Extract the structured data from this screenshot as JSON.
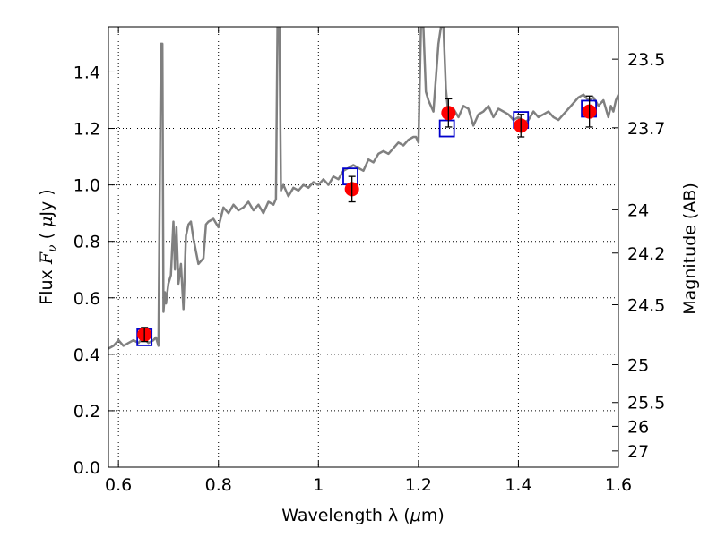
{
  "chart_data": {
    "type": "line",
    "title": "",
    "xlabel_text": "Wavelength  λ (",
    "xlabel_unit_mu": "μ",
    "xlabel_unit_rest": "m)",
    "ylabel_prefix": "Flux  ",
    "ylabel_F": "F",
    "ylabel_nu": "ν",
    "ylabel_open": "  ( ",
    "ylabel_mu": "μ",
    "ylabel_rest": "Jy )",
    "y2label": "Magnitude (AB)",
    "xlim": [
      0.58,
      1.6
    ],
    "ylim": [
      0.0,
      1.56
    ],
    "xticks": [
      0.6,
      0.8,
      1.0,
      1.2,
      1.4,
      1.6
    ],
    "xtick_labels": [
      "0.6",
      "0.8",
      "1",
      "1.2",
      "1.4",
      "1.6"
    ],
    "yticks": [
      0.0,
      0.2,
      0.4,
      0.6,
      0.8,
      1.0,
      1.2,
      1.4
    ],
    "ytick_labels": [
      "0.0",
      "0.2",
      "0.4",
      "0.6",
      "0.8",
      "1.0",
      "1.2",
      "1.4"
    ],
    "y2ticks": [
      {
        "label": "23.5",
        "value": 23.5
      },
      {
        "label": "23.7",
        "value": 23.7
      },
      {
        "label": "24",
        "value": 24.0
      },
      {
        "label": "24.2",
        "value": 24.2
      },
      {
        "label": "24.5",
        "value": 24.5
      },
      {
        "label": "25",
        "value": 25.0
      },
      {
        "label": "25.5",
        "value": 25.5
      },
      {
        "label": "26",
        "value": 26.0
      },
      {
        "label": "27",
        "value": 27.0
      }
    ],
    "grid": true,
    "colors": {
      "model": "#808080",
      "observed": "#ff0000",
      "synthetic": "#0000cc",
      "errorbar": "#000000",
      "grid": "#000000"
    },
    "model_spectrum": {
      "x": [
        0.58,
        0.59,
        0.6,
        0.61,
        0.62,
        0.63,
        0.64,
        0.65,
        0.66,
        0.67,
        0.675,
        0.68,
        0.685,
        0.688,
        0.69,
        0.693,
        0.695,
        0.7,
        0.705,
        0.71,
        0.713,
        0.716,
        0.72,
        0.725,
        0.73,
        0.735,
        0.74,
        0.745,
        0.75,
        0.76,
        0.77,
        0.775,
        0.78,
        0.79,
        0.8,
        0.81,
        0.82,
        0.83,
        0.84,
        0.85,
        0.86,
        0.87,
        0.88,
        0.89,
        0.9,
        0.91,
        0.915,
        0.918,
        0.92,
        0.922,
        0.925,
        0.93,
        0.94,
        0.95,
        0.96,
        0.97,
        0.98,
        0.99,
        1.0,
        1.01,
        1.02,
        1.03,
        1.04,
        1.05,
        1.06,
        1.07,
        1.08,
        1.09,
        1.1,
        1.11,
        1.12,
        1.13,
        1.14,
        1.15,
        1.16,
        1.17,
        1.18,
        1.19,
        1.195,
        1.2,
        1.205,
        1.21,
        1.215,
        1.22,
        1.23,
        1.24,
        1.245,
        1.25,
        1.255,
        1.26,
        1.27,
        1.28,
        1.29,
        1.3,
        1.31,
        1.32,
        1.33,
        1.34,
        1.35,
        1.36,
        1.37,
        1.38,
        1.39,
        1.4,
        1.41,
        1.42,
        1.43,
        1.44,
        1.45,
        1.46,
        1.47,
        1.48,
        1.49,
        1.5,
        1.51,
        1.52,
        1.53,
        1.54,
        1.55,
        1.56,
        1.57,
        1.58,
        1.585,
        1.59,
        1.595,
        1.6
      ],
      "y": [
        0.42,
        0.43,
        0.45,
        0.43,
        0.44,
        0.45,
        0.44,
        0.46,
        0.44,
        0.45,
        0.46,
        0.43,
        1.5,
        1.5,
        0.55,
        0.62,
        0.58,
        0.65,
        0.68,
        0.87,
        0.7,
        0.85,
        0.65,
        0.72,
        0.56,
        0.82,
        0.86,
        0.87,
        0.81,
        0.72,
        0.74,
        0.86,
        0.87,
        0.88,
        0.85,
        0.92,
        0.9,
        0.93,
        0.91,
        0.92,
        0.94,
        0.91,
        0.93,
        0.9,
        0.94,
        0.93,
        0.95,
        1.56,
        1.56,
        1.56,
        0.98,
        1.0,
        0.96,
        0.99,
        0.98,
        1.0,
        0.99,
        1.01,
        1.0,
        1.02,
        1.0,
        1.03,
        1.02,
        1.05,
        1.06,
        1.07,
        1.06,
        1.05,
        1.09,
        1.08,
        1.11,
        1.12,
        1.11,
        1.13,
        1.15,
        1.14,
        1.16,
        1.17,
        1.17,
        1.15,
        1.56,
        1.56,
        1.33,
        1.3,
        1.26,
        1.5,
        1.56,
        1.56,
        1.34,
        1.25,
        1.27,
        1.24,
        1.28,
        1.27,
        1.21,
        1.25,
        1.26,
        1.28,
        1.24,
        1.27,
        1.26,
        1.25,
        1.23,
        1.24,
        1.22,
        1.23,
        1.26,
        1.24,
        1.25,
        1.26,
        1.24,
        1.23,
        1.25,
        1.27,
        1.29,
        1.31,
        1.32,
        1.3,
        1.31,
        1.28,
        1.3,
        1.24,
        1.28,
        1.26,
        1.3,
        1.32
      ]
    },
    "observed": {
      "x": [
        0.652,
        1.067,
        1.26,
        1.405,
        1.542
      ],
      "y": [
        0.47,
        0.985,
        1.255,
        1.21,
        1.26
      ],
      "yerr": [
        0.025,
        0.045,
        0.05,
        0.04,
        0.055
      ]
    },
    "synthetic": {
      "x": [
        0.652,
        1.064,
        1.257,
        1.405,
        1.541
      ],
      "y": [
        0.46,
        1.03,
        1.2,
        1.23,
        1.27
      ]
    }
  }
}
